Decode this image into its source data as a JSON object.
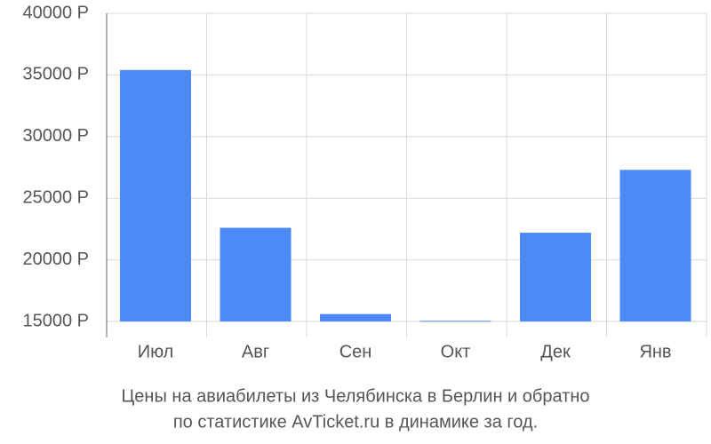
{
  "chart_data": {
    "type": "bar",
    "title": "Цены на авиабилеты из Челябинска в Берлин и обратно",
    "subtitle": "по статистике AvTicket.ru в динамике за год.",
    "categories": [
      "Июл",
      "Авг",
      "Сен",
      "Окт",
      "Дек",
      "Янв"
    ],
    "values": [
      35400,
      22600,
      15600,
      15050,
      22200,
      27300
    ],
    "color": "#4d89f9",
    "ylim": [
      15000,
      40000
    ],
    "yticks": [
      {
        "value": 15000,
        "label": "15000 Р"
      },
      {
        "value": 20000,
        "label": "20000 Р"
      },
      {
        "value": 25000,
        "label": "25000 Р"
      },
      {
        "value": 30000,
        "label": "30000 Р"
      },
      {
        "value": 35000,
        "label": "35000 Р"
      },
      {
        "value": 40000,
        "label": "40000 Р"
      }
    ],
    "grid": true
  }
}
